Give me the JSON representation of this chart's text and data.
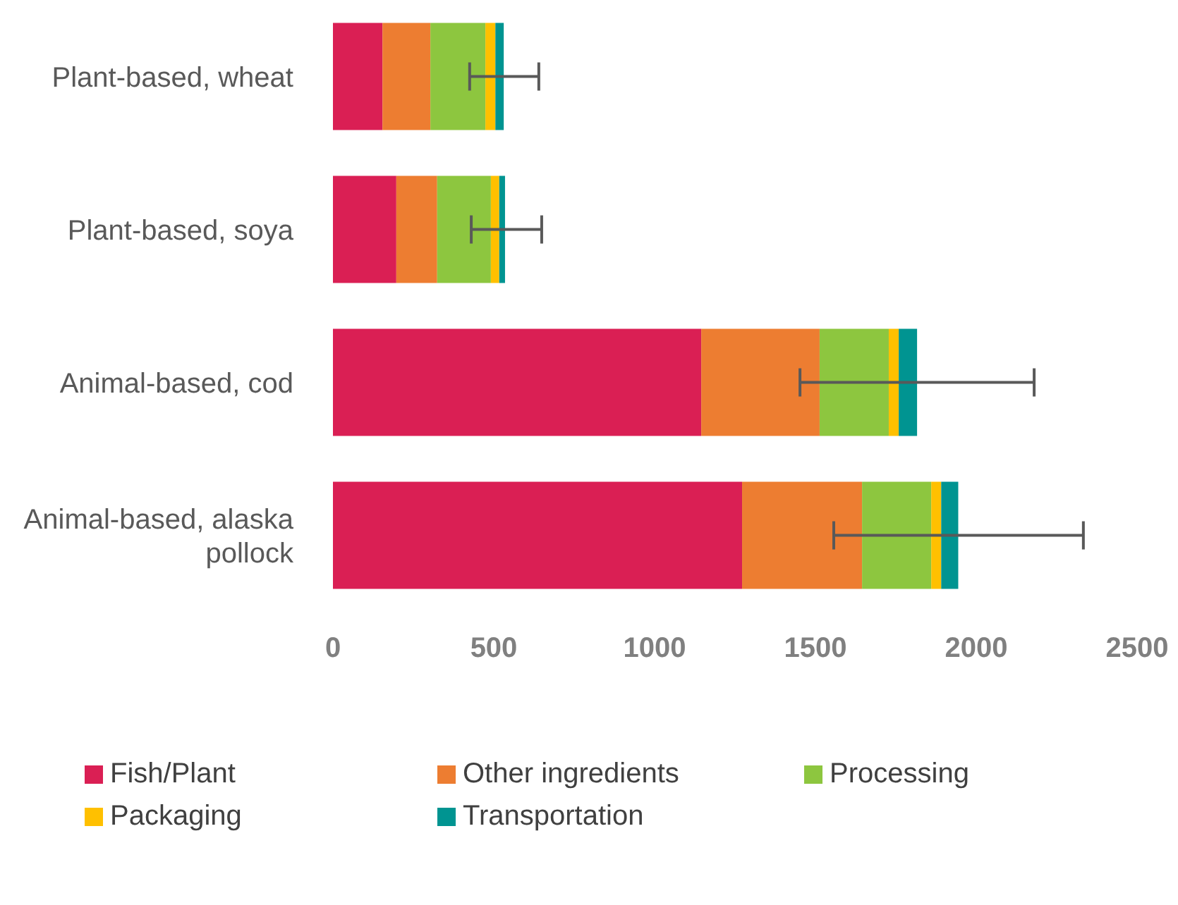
{
  "chart_data": {
    "type": "bar",
    "orientation": "horizontal",
    "stacked": true,
    "categories": [
      "Plant-based, wheat",
      "Plant-based, soya",
      "Animal-based, cod",
      "Animal-based, alaska pollock"
    ],
    "series": [
      {
        "name": "Fish/Plant",
        "color": "#da1f54",
        "values": [
          154,
          197,
          1145,
          1272
        ]
      },
      {
        "name": "Other ingredients",
        "color": "#ed7d31",
        "values": [
          149,
          127,
          368,
          373
        ]
      },
      {
        "name": "Processing",
        "color": "#8dc63f",
        "values": [
          171,
          167,
          215,
          215
        ]
      },
      {
        "name": "Packaging",
        "color": "#ffc000",
        "values": [
          31,
          26,
          31,
          31
        ]
      },
      {
        "name": "Transportation",
        "color": "#009491",
        "values": [
          26,
          18,
          57,
          53
        ],
        "errors": [
          [
            425,
            640
          ],
          [
            430,
            649
          ],
          [
            1452,
            2180
          ],
          [
            1557,
            2333
          ]
        ]
      }
    ],
    "xlim": [
      0,
      2500
    ],
    "xticks": [
      0,
      500,
      1000,
      1500,
      2000,
      2500
    ],
    "grid": false,
    "legend": "bottom"
  }
}
